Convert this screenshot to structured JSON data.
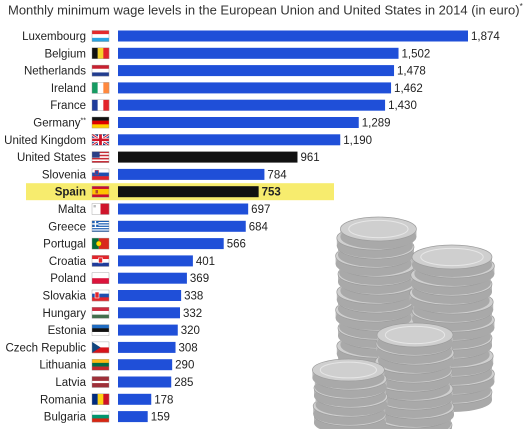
{
  "chart_data": {
    "type": "bar",
    "orientation": "horizontal",
    "title": "Monthly minimum wage levels in the European Union and United States in 2014 (in euro)",
    "title_footnote_mark": "*",
    "categories": [
      "Luxembourg",
      "Belgium",
      "Netherlands",
      "Ireland",
      "France",
      "Germany",
      "United Kingdom",
      "United States",
      "Slovenia",
      "Spain",
      "Malta",
      "Greece",
      "Portugal",
      "Croatia",
      "Poland",
      "Slovakia",
      "Hungary",
      "Estonia",
      "Czech Republic",
      "Lithuania",
      "Latvia",
      "Romania",
      "Bulgaria"
    ],
    "category_marks": {
      "Germany": "**"
    },
    "values": [
      1874,
      1502,
      1478,
      1462,
      1430,
      1289,
      1190,
      961,
      784,
      753,
      697,
      684,
      566,
      401,
      369,
      338,
      332,
      320,
      308,
      290,
      285,
      178,
      159
    ],
    "value_labels": [
      "1,874",
      "1,502",
      "1,478",
      "1,462",
      "1,430",
      "1,289",
      "1,190",
      "961",
      "784",
      "753",
      "697",
      "684",
      "566",
      "401",
      "369",
      "338",
      "332",
      "320",
      "308",
      "290",
      "285",
      "178",
      "159"
    ],
    "highlighted_category": "Spain",
    "highlight_band": "Spain",
    "colors": {
      "bar": "#1f4fd8",
      "bar_black": "#111111",
      "highlight_band": "#f7ec6e",
      "coins": "#cfcfcf"
    },
    "black_bars": [
      "United States",
      "Spain"
    ],
    "flag_icons": [
      "luxembourg-flag",
      "belgium-flag",
      "netherlands-flag",
      "ireland-flag",
      "france-flag",
      "germany-flag",
      "uk-flag",
      "usa-flag",
      "slovenia-flag",
      "spain-flag",
      "malta-flag",
      "greece-flag",
      "portugal-flag",
      "croatia-flag",
      "poland-flag",
      "slovakia-flag",
      "hungary-flag",
      "estonia-flag",
      "czech-flag",
      "lithuania-flag",
      "latvia-flag",
      "romania-flag",
      "bulgaria-flag"
    ],
    "decoration": "coin-stacks-icon",
    "xlim": [
      0,
      1874
    ],
    "grid": false,
    "legend": "none"
  }
}
